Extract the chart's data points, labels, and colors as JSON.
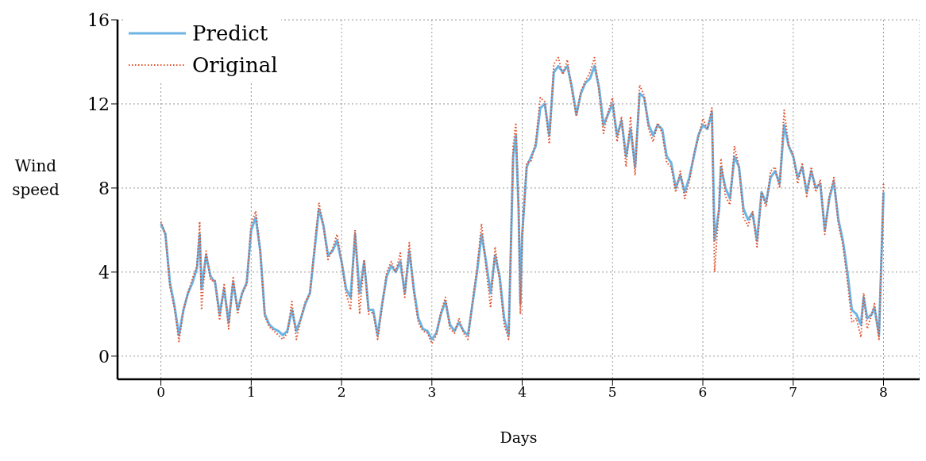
{
  "chart_data": {
    "type": "line",
    "xlabel": "Days",
    "ylabel": "Wind speed",
    "x": [
      0,
      0.05,
      0.1,
      0.15,
      0.2,
      0.25,
      0.3,
      0.35,
      0.4,
      0.43,
      0.45,
      0.5,
      0.55,
      0.6,
      0.65,
      0.7,
      0.75,
      0.8,
      0.85,
      0.9,
      0.95,
      1,
      1.05,
      1.1,
      1.15,
      1.2,
      1.25,
      1.3,
      1.35,
      1.4,
      1.45,
      1.5,
      1.55,
      1.6,
      1.65,
      1.7,
      1.75,
      1.8,
      1.85,
      1.9,
      1.95,
      2,
      2.05,
      2.1,
      2.15,
      2.2,
      2.25,
      2.3,
      2.35,
      2.4,
      2.45,
      2.5,
      2.55,
      2.6,
      2.65,
      2.7,
      2.75,
      2.8,
      2.85,
      2.9,
      2.95,
      3,
      3.05,
      3.1,
      3.15,
      3.2,
      3.25,
      3.3,
      3.35,
      3.4,
      3.45,
      3.5,
      3.55,
      3.6,
      3.65,
      3.7,
      3.75,
      3.8,
      3.85,
      3.9,
      3.93,
      3.96,
      3.98,
      4,
      4.05,
      4.1,
      4.15,
      4.2,
      4.25,
      4.3,
      4.35,
      4.4,
      4.45,
      4.5,
      4.55,
      4.6,
      4.65,
      4.7,
      4.75,
      4.8,
      4.85,
      4.9,
      4.95,
      5,
      5.05,
      5.1,
      5.15,
      5.2,
      5.25,
      5.3,
      5.35,
      5.4,
      5.45,
      5.5,
      5.55,
      5.6,
      5.65,
      5.7,
      5.75,
      5.8,
      5.85,
      5.9,
      5.95,
      6,
      6.05,
      6.1,
      6.13,
      6.18,
      6.2,
      6.25,
      6.3,
      6.35,
      6.4,
      6.45,
      6.5,
      6.55,
      6.6,
      6.65,
      6.7,
      6.75,
      6.8,
      6.85,
      6.9,
      6.95,
      7,
      7.05,
      7.1,
      7.15,
      7.2,
      7.25,
      7.3,
      7.35,
      7.4,
      7.45,
      7.5,
      7.55,
      7.6,
      7.65,
      7.7,
      7.75,
      7.78,
      7.82,
      7.87,
      7.9,
      7.95,
      8
    ],
    "series": [
      {
        "name": "Predict",
        "color": "#6cb4e4",
        "line_style": "solid",
        "values": [
          6.3,
          5.8,
          3.5,
          2.4,
          1,
          2.2,
          3,
          3.5,
          4.2,
          5.8,
          3.2,
          4.8,
          3.8,
          3.5,
          2,
          3.2,
          1.6,
          3.5,
          2.2,
          3,
          3.5,
          6,
          6.6,
          5,
          2,
          1.5,
          1.3,
          1.2,
          1,
          1.2,
          2.2,
          1.2,
          1.8,
          2.5,
          3,
          5,
          7,
          6.2,
          4.8,
          5,
          5.5,
          4.5,
          3.2,
          2.8,
          5.8,
          3,
          4.5,
          2.2,
          2.2,
          1,
          2.5,
          3.8,
          4.3,
          4,
          4.5,
          3,
          5,
          3.2,
          1.8,
          1.3,
          1.2,
          0.8,
          1.1,
          2,
          2.6,
          1.5,
          1.2,
          1.6,
          1.2,
          1,
          2.5,
          4,
          5.8,
          4.5,
          3,
          4.8,
          3.8,
          1.8,
          1,
          9.5,
          10.5,
          7,
          2.5,
          5.8,
          9,
          9.5,
          10,
          11.8,
          12,
          10.5,
          13.5,
          13.8,
          13.5,
          13.8,
          12.8,
          11.5,
          12.5,
          13,
          13.2,
          13.8,
          12.8,
          11,
          11.5,
          12,
          10.5,
          11.2,
          9.5,
          10.8,
          9,
          12.5,
          12.3,
          11,
          10.5,
          11,
          10.8,
          9.5,
          9.2,
          8,
          8.6,
          7.8,
          8.5,
          9.5,
          10.5,
          11,
          10.8,
          11.6,
          5.5,
          7,
          9,
          8,
          7.5,
          9.5,
          9,
          7,
          6.5,
          6.8,
          5.5,
          7.8,
          7.3,
          8.5,
          8.8,
          8.2,
          11,
          10,
          9.5,
          8.5,
          9,
          7.8,
          8.8,
          8,
          8.2,
          6,
          7.5,
          8.3,
          6.5,
          5.5,
          4,
          2.2,
          2,
          1.5,
          2.8,
          1.8,
          2,
          2.3,
          1,
          7.8
        ]
      },
      {
        "name": "Original",
        "color": "#e0502a",
        "line_style": "dotted",
        "values": [
          6.4,
          5.8,
          3.3,
          2.3,
          0.7,
          2.2,
          3,
          3.7,
          4.3,
          6.4,
          2.2,
          5,
          3.6,
          3.6,
          1.7,
          3.4,
          1.3,
          3.8,
          2,
          3,
          3.4,
          6.3,
          6.9,
          5,
          1.9,
          1.4,
          1.2,
          1,
          0.8,
          1.1,
          2.6,
          0.8,
          1.8,
          2.6,
          3,
          5.2,
          7.3,
          6.2,
          4.6,
          5.1,
          5.8,
          4.5,
          3,
          2.2,
          6,
          2,
          4.6,
          2,
          2.1,
          0.8,
          2.4,
          4,
          4.5,
          4,
          4.9,
          2.8,
          5.4,
          3,
          1.6,
          1.2,
          1.1,
          0.6,
          1,
          2.1,
          2.8,
          1.3,
          1.1,
          1.8,
          1.1,
          0.8,
          2.6,
          4.2,
          6.3,
          4.2,
          2.3,
          5.2,
          3.6,
          1.5,
          0.8,
          10,
          11.1,
          7,
          2,
          5.6,
          9.2,
          9.3,
          10.2,
          12.3,
          12.1,
          10.1,
          13.9,
          14.2,
          13.4,
          14.1,
          12.6,
          11.4,
          12.6,
          13.1,
          13.5,
          14.2,
          12.6,
          10.6,
          11.6,
          12.3,
          10.2,
          11.4,
          9,
          11.4,
          8.6,
          12.9,
          12.4,
          10.8,
          10.2,
          11.1,
          10.6,
          9.2,
          9,
          7.8,
          8.8,
          7.5,
          8.3,
          9.6,
          10.4,
          11.3,
          10.8,
          11.8,
          4,
          7.2,
          9.4,
          7.6,
          7.2,
          10,
          9,
          6.6,
          6.2,
          6.9,
          5.2,
          7.8,
          7.1,
          8.8,
          9,
          8,
          11.7,
          10,
          9.6,
          8.2,
          9.2,
          7.6,
          9,
          7.8,
          8.4,
          5.8,
          7.6,
          8.5,
          6.3,
          5.3,
          3.6,
          1.6,
          1.8,
          0.9,
          3,
          1.3,
          2,
          2.5,
          0.8,
          8.2
        ]
      }
    ],
    "xlim": [
      -0.48,
      8.4
    ],
    "xticks": [
      0,
      1,
      2,
      3,
      4,
      5,
      6,
      7,
      8
    ],
    "ylim": [
      -1.1,
      16
    ],
    "yticks": [
      0,
      4,
      8,
      12,
      16
    ],
    "grid": true,
    "legend": "top left"
  }
}
